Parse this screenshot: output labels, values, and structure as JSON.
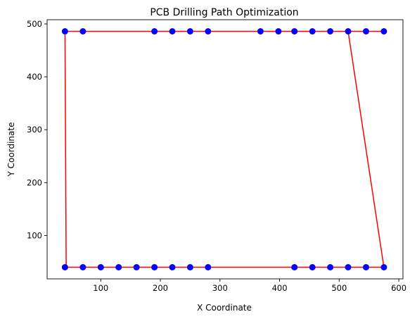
{
  "chart_data": {
    "type": "scatter",
    "title": "PCB Drilling Path Optimization",
    "xlabel": "X Coordinate",
    "ylabel": "Y Coordinate",
    "xlim": [
      10,
      607
    ],
    "ylim": [
      18,
      508
    ],
    "xticks": [
      100,
      200,
      300,
      400,
      500,
      600
    ],
    "yticks": [
      100,
      200,
      300,
      400,
      500
    ],
    "grid": false,
    "point_color": "#0000ff",
    "path_color": "#ff0000",
    "points": [
      {
        "x": 40,
        "y": 40
      },
      {
        "x": 70,
        "y": 40
      },
      {
        "x": 100,
        "y": 40
      },
      {
        "x": 130,
        "y": 40
      },
      {
        "x": 160,
        "y": 40
      },
      {
        "x": 190,
        "y": 40
      },
      {
        "x": 220,
        "y": 40
      },
      {
        "x": 250,
        "y": 40
      },
      {
        "x": 280,
        "y": 40
      },
      {
        "x": 425,
        "y": 40
      },
      {
        "x": 455,
        "y": 40
      },
      {
        "x": 485,
        "y": 40
      },
      {
        "x": 515,
        "y": 40
      },
      {
        "x": 545,
        "y": 40
      },
      {
        "x": 575,
        "y": 40
      },
      {
        "x": 40,
        "y": 486
      },
      {
        "x": 70,
        "y": 486
      },
      {
        "x": 190,
        "y": 486
      },
      {
        "x": 220,
        "y": 486
      },
      {
        "x": 250,
        "y": 486
      },
      {
        "x": 280,
        "y": 486
      },
      {
        "x": 368,
        "y": 486
      },
      {
        "x": 398,
        "y": 486
      },
      {
        "x": 425,
        "y": 486
      },
      {
        "x": 455,
        "y": 486
      },
      {
        "x": 485,
        "y": 486
      },
      {
        "x": 515,
        "y": 486
      },
      {
        "x": 545,
        "y": 486
      },
      {
        "x": 575,
        "y": 486
      }
    ],
    "path": [
      {
        "x": 40,
        "y": 40
      },
      {
        "x": 70,
        "y": 40
      },
      {
        "x": 100,
        "y": 40
      },
      {
        "x": 130,
        "y": 40
      },
      {
        "x": 160,
        "y": 40
      },
      {
        "x": 190,
        "y": 40
      },
      {
        "x": 220,
        "y": 40
      },
      {
        "x": 250,
        "y": 40
      },
      {
        "x": 280,
        "y": 40
      },
      {
        "x": 425,
        "y": 40
      },
      {
        "x": 455,
        "y": 40
      },
      {
        "x": 485,
        "y": 40
      },
      {
        "x": 515,
        "y": 40
      },
      {
        "x": 545,
        "y": 40
      },
      {
        "x": 575,
        "y": 40
      },
      {
        "x": 515,
        "y": 486
      },
      {
        "x": 575,
        "y": 486
      },
      {
        "x": 545,
        "y": 486
      },
      {
        "x": 485,
        "y": 486
      },
      {
        "x": 455,
        "y": 486
      },
      {
        "x": 425,
        "y": 486
      },
      {
        "x": 398,
        "y": 486
      },
      {
        "x": 368,
        "y": 486
      },
      {
        "x": 280,
        "y": 486
      },
      {
        "x": 250,
        "y": 486
      },
      {
        "x": 220,
        "y": 486
      },
      {
        "x": 190,
        "y": 486
      },
      {
        "x": 70,
        "y": 486
      },
      {
        "x": 40,
        "y": 486
      },
      {
        "x": 42,
        "y": 40
      }
    ]
  }
}
